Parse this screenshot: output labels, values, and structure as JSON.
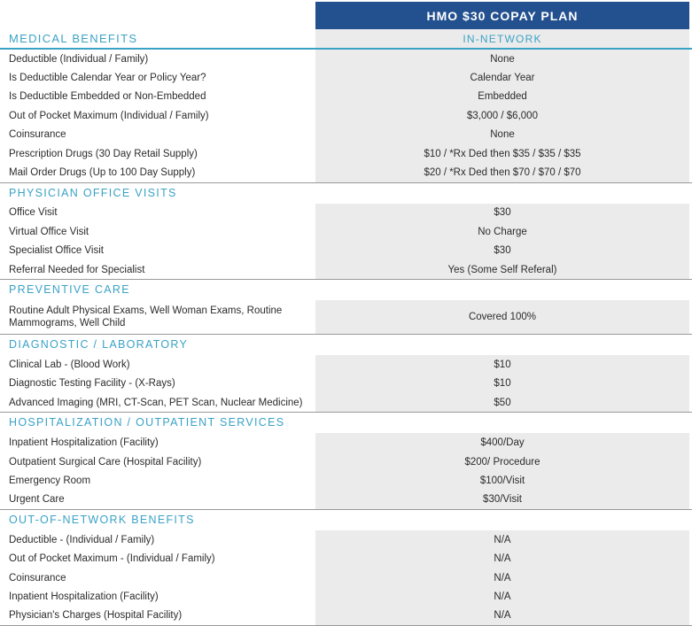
{
  "header": {
    "plan_title": "HMO $30 COPAY PLAN",
    "column_label": "IN-NETWORK"
  },
  "sections": [
    {
      "title": "MEDICAL BENEFITS",
      "rows": [
        {
          "label": "Deductible (Individual / Family)",
          "value": "None"
        },
        {
          "label": "Is Deductible Calendar Year or Policy Year?",
          "value": "Calendar Year"
        },
        {
          "label": "Is Deductible Embedded or Non-Embedded",
          "value": "Embedded"
        },
        {
          "label": "Out of Pocket Maximum (Individual / Family)",
          "value": "$3,000 / $6,000"
        },
        {
          "label": "Coinsurance",
          "value": "None"
        },
        {
          "label": "Prescription Drugs (30 Day Retail Supply)",
          "value": "$10 / *Rx Ded then $35 / $35 / $35"
        },
        {
          "label": "Mail Order Drugs (Up to 100 Day Supply)",
          "value": "$20 / *Rx Ded then $70 / $70 / $70"
        }
      ]
    },
    {
      "title": "PHYSICIAN OFFICE VISITS",
      "rows": [
        {
          "label": "Office Visit",
          "value": "$30"
        },
        {
          "label": "Virtual Office Visit",
          "value": "No Charge"
        },
        {
          "label": "Specialist Office Visit",
          "value": "$30"
        },
        {
          "label": "Referral Needed for Specialist",
          "value": "Yes (Some Self Referal)"
        }
      ]
    },
    {
      "title": "PREVENTIVE CARE",
      "rows": [
        {
          "label": "Routine Adult Physical Exams, Well Woman Exams, Routine Mammograms, Well Child",
          "value": "Covered 100%"
        }
      ]
    },
    {
      "title": "DIAGNOSTIC / LABORATORY",
      "rows": [
        {
          "label": "Clinical Lab - (Blood Work)",
          "value": "$10"
        },
        {
          "label": "Diagnostic Testing Facility - (X-Rays)",
          "value": "$10"
        },
        {
          "label": "Advanced Imaging (MRI, CT-Scan, PET Scan, Nuclear Medicine)",
          "value": "$50"
        }
      ]
    },
    {
      "title": "HOSPITALIZATION / OUTPATIENT SERVICES",
      "rows": [
        {
          "label": "Inpatient Hospitalization (Facility)",
          "value": "$400/Day"
        },
        {
          "label": "Outpatient Surgical Care (Hospital Facility)",
          "value": "$200/ Procedure"
        },
        {
          "label": "Emergency Room",
          "value": "$100/Visit"
        },
        {
          "label": "Urgent Care",
          "value": "$30/Visit"
        }
      ]
    },
    {
      "title": "OUT-OF-NETWORK BENEFITS",
      "rows": [
        {
          "label": "Deductible - (Individual / Family)",
          "value": "N/A"
        },
        {
          "label": "Out of Pocket Maximum - (Individual / Family)",
          "value": "N/A"
        },
        {
          "label": "Coinsurance",
          "value": "N/A"
        },
        {
          "label": "Inpatient Hospitalization (Facility)",
          "value": "N/A"
        },
        {
          "label": "Physician's Charges (Hospital Facility)",
          "value": "N/A"
        }
      ]
    }
  ]
}
